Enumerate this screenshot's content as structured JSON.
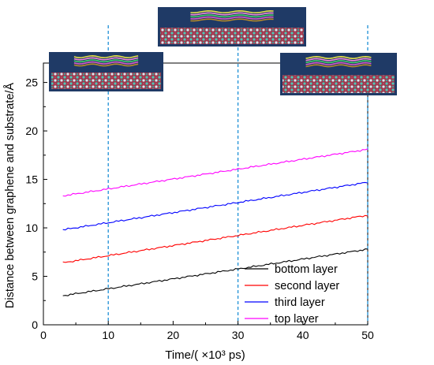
{
  "chart_data": {
    "type": "line",
    "title": "",
    "xlabel": "Time/( ×10³ ps)",
    "ylabel": "Distance between graphene and substrate/Å",
    "xlim": [
      0,
      50
    ],
    "ylim": [
      0,
      27
    ],
    "x_ticks": [
      0,
      10,
      20,
      30,
      40,
      50
    ],
    "y_ticks": [
      0,
      5,
      10,
      15,
      20,
      25
    ],
    "grid": false,
    "legend_position": "bottom-right",
    "series": [
      {
        "name": "bottom layer",
        "color": "#000000",
        "x": [
          3,
          50
        ],
        "y": [
          3.0,
          7.8
        ]
      },
      {
        "name": "second layer",
        "color": "#ff0000",
        "x": [
          3,
          50
        ],
        "y": [
          6.4,
          11.3
        ]
      },
      {
        "name": "third layer",
        "color": "#0000ff",
        "x": [
          3,
          50
        ],
        "y": [
          9.8,
          14.7
        ]
      },
      {
        "name": "top layer",
        "color": "#ff00ff",
        "x": [
          3,
          50
        ],
        "y": [
          13.3,
          18.1
        ]
      }
    ],
    "reference_lines": [
      {
        "x": 10,
        "color": "#1e90d6",
        "style": "dashed"
      },
      {
        "x": 30,
        "color": "#1e90d6",
        "style": "dashed"
      },
      {
        "x": 50,
        "color": "#1e90d6",
        "style": "dashed"
      }
    ],
    "inset_images": [
      {
        "name": "snapshot-at-10",
        "x": 10,
        "description_icon": "graphene-layers-on-substrate-icon"
      },
      {
        "name": "snapshot-at-30",
        "x": 30,
        "description_icon": "graphene-layers-on-substrate-icon"
      },
      {
        "name": "snapshot-at-50",
        "x": 50,
        "description_icon": "graphene-layers-on-substrate-icon"
      }
    ]
  }
}
